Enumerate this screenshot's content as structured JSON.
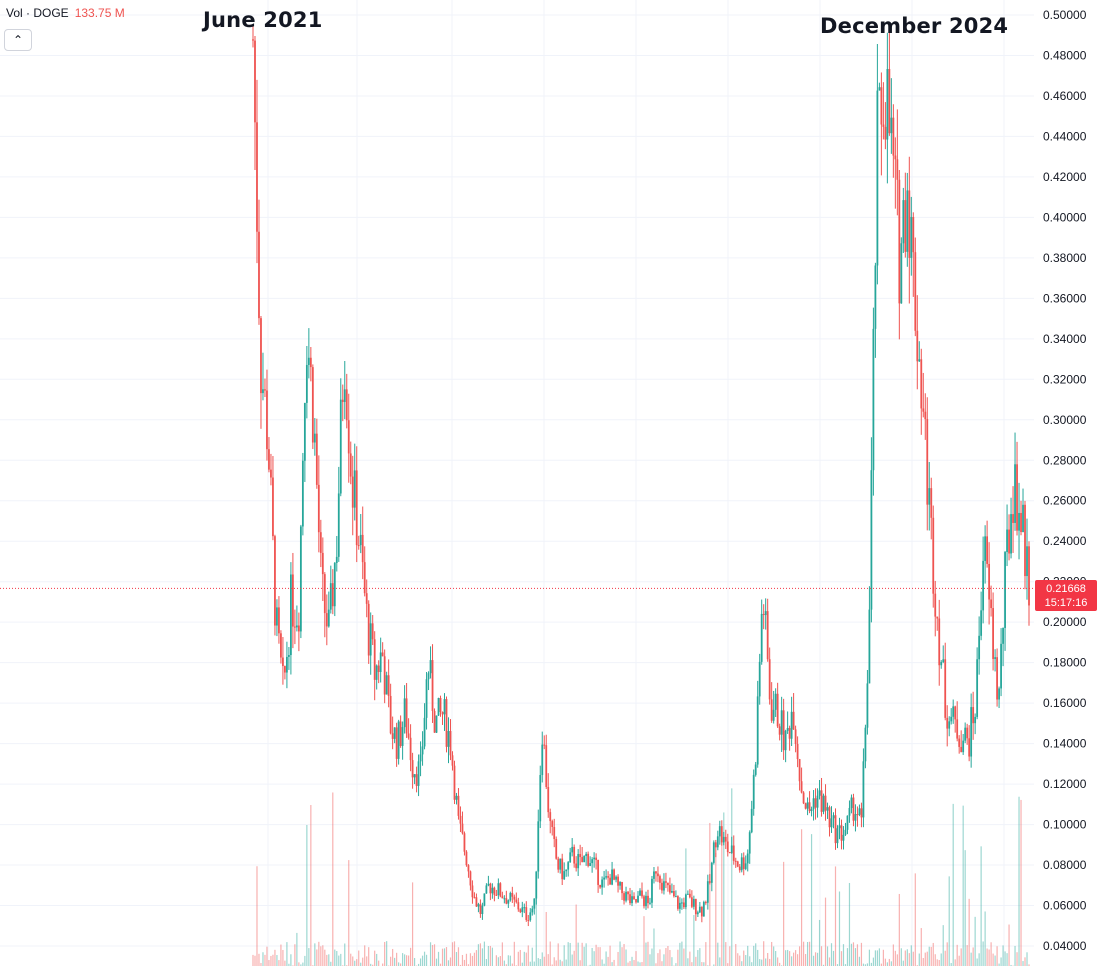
{
  "legend": {
    "label": "Vol · DOGE",
    "value": "133.75 M"
  },
  "collapse_icon": "chevron-up-icon",
  "annotations": [
    "June 2021",
    "December 2024"
  ],
  "current_price": {
    "price": "0.21668",
    "countdown": "15:17:16"
  },
  "colors": {
    "up": "#26a69a",
    "down": "#ef5350",
    "badge": "#f23645",
    "grid": "#f0f3fa"
  },
  "chart_data": {
    "type": "line",
    "subtype": "candlestick-envelope",
    "series": [
      {
        "values": [
          0.488,
          0.33,
          0.29,
          0.2,
          0.165,
          0.21,
          0.205,
          0.35,
          0.3,
          0.215,
          0.195,
          0.24,
          0.34,
          0.27,
          0.24,
          0.2,
          0.175,
          0.185,
          0.15,
          0.14,
          0.155,
          0.13,
          0.125,
          0.18,
          0.15,
          0.155,
          0.14,
          0.1,
          0.085,
          0.065,
          0.056,
          0.07,
          0.068,
          0.065,
          0.062,
          0.059,
          0.055,
          0.06,
          0.15,
          0.1,
          0.08,
          0.075,
          0.085,
          0.08,
          0.085,
          0.078,
          0.07,
          0.075,
          0.068,
          0.065,
          0.06,
          0.065,
          0.06,
          0.08,
          0.07,
          0.065,
          0.06,
          0.063,
          0.06,
          0.058,
          0.07,
          0.1,
          0.09,
          0.085,
          0.08,
          0.085,
          0.13,
          0.215,
          0.16,
          0.155,
          0.14,
          0.16,
          0.12,
          0.105,
          0.115,
          0.11,
          0.1,
          0.095,
          0.098,
          0.11,
          0.1,
          0.2,
          0.43,
          0.47,
          0.43,
          0.38,
          0.42,
          0.36,
          0.31,
          0.25,
          0.2,
          0.16,
          0.15,
          0.145,
          0.14,
          0.16,
          0.24,
          0.2,
          0.16,
          0.23,
          0.27,
          0.25,
          0.22
        ]
      }
    ],
    "y_ticks": [
      "0.50000",
      "0.48000",
      "0.46000",
      "0.44000",
      "0.42000",
      "0.40000",
      "0.38000",
      "0.36000",
      "0.34000",
      "0.32000",
      "0.30000",
      "0.28000",
      "0.26000",
      "0.24000",
      "0.22000",
      "0.20000",
      "0.18000",
      "0.16000",
      "0.14000",
      "0.12000",
      "0.10000",
      "0.08000",
      "0.06000",
      "0.04000"
    ],
    "ylim": [
      0.04,
      0.5
    ],
    "current_value": 0.21668,
    "grid": true,
    "legend": "top-left"
  }
}
